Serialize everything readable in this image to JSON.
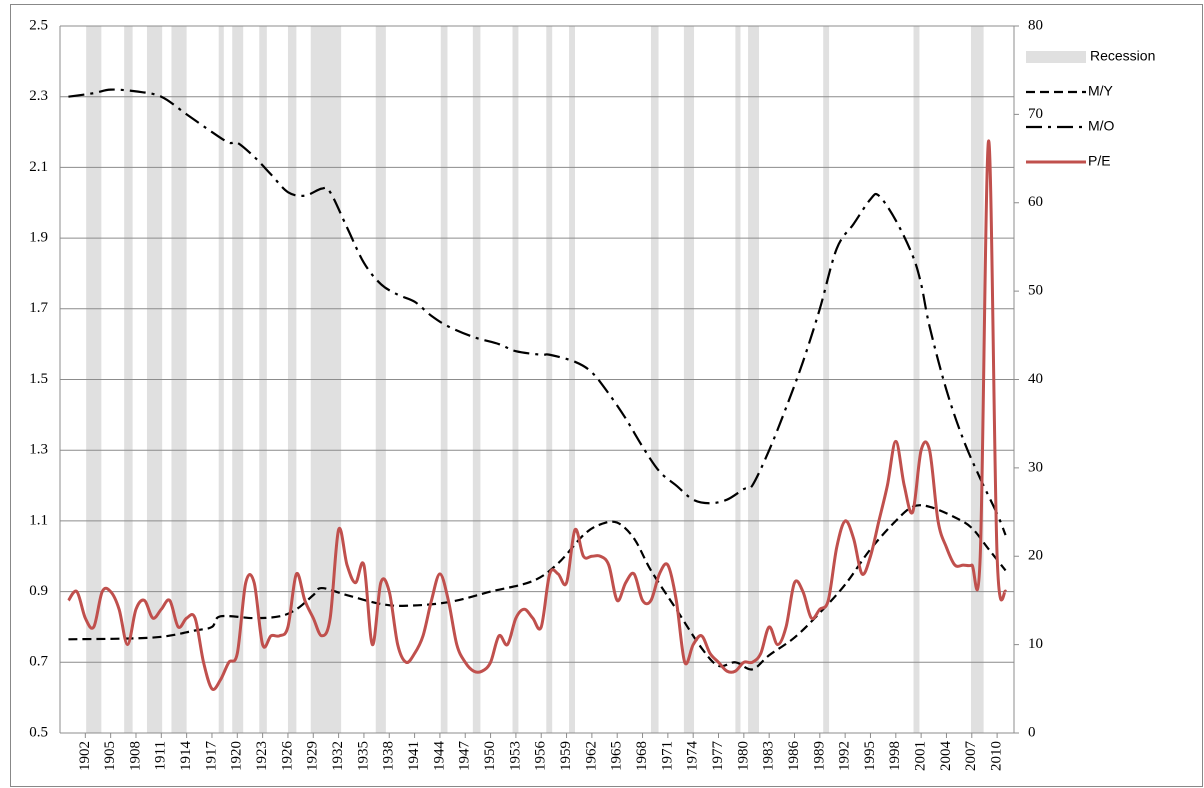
{
  "chart_data": {
    "type": "line",
    "xlim": [
      1899,
      2012
    ],
    "xticks": [
      1902,
      1905,
      1908,
      1911,
      1914,
      1917,
      1920,
      1923,
      1926,
      1929,
      1932,
      1935,
      1938,
      1941,
      1944,
      1947,
      1950,
      1953,
      1956,
      1959,
      1962,
      1965,
      1968,
      1971,
      1974,
      1977,
      1980,
      1983,
      1986,
      1989,
      1992,
      1995,
      1998,
      2001,
      2004,
      2007,
      2010
    ],
    "ylim": [
      0.5,
      2.5
    ],
    "yticks": [
      0.5,
      0.7,
      0.9,
      1.1,
      1.3,
      1.5,
      1.7,
      1.9,
      2.1,
      2.3,
      2.5
    ],
    "y2lim": [
      0,
      80
    ],
    "y2ticks": [
      0,
      10,
      20,
      30,
      40,
      50,
      60,
      70,
      80
    ],
    "grid": true,
    "legend": "right",
    "series": [
      {
        "name": "Recession",
        "color": "#e0e0e0",
        "periods": [
          [
            1902.1,
            1903.9
          ],
          [
            1906.6,
            1907.6
          ],
          [
            1909.3,
            1911.1
          ],
          [
            1912.2,
            1914.0
          ],
          [
            1917.8,
            1918.4
          ],
          [
            1919.4,
            1920.7
          ],
          [
            1922.6,
            1923.5
          ],
          [
            1926.0,
            1927.0
          ],
          [
            1928.7,
            1932.3
          ],
          [
            1936.4,
            1937.6
          ],
          [
            1944.1,
            1944.9
          ],
          [
            1947.9,
            1948.8
          ],
          [
            1952.6,
            1953.3
          ],
          [
            1956.6,
            1957.3
          ],
          [
            1959.3,
            1960.0
          ],
          [
            1969.0,
            1969.9
          ],
          [
            1972.9,
            1974.1
          ],
          [
            1979.0,
            1979.6
          ],
          [
            1980.5,
            1981.8
          ],
          [
            1989.4,
            1990.1
          ],
          [
            2000.1,
            2000.8
          ],
          [
            2006.9,
            2008.4
          ]
        ]
      },
      {
        "name": "M/Y",
        "color": "#000000",
        "dash": "dash",
        "x": [
          1900,
          1910,
          1915,
          1917,
          1918,
          1922,
          1925,
          1927,
          1929,
          1930,
          1933,
          1937,
          1940,
          1945,
          1950,
          1955,
          1958,
          1961,
          1963,
          1965,
          1967,
          1969,
          1972,
          1975,
          1977,
          1979,
          1981,
          1983,
          1986,
          1989,
          1992,
          1995,
          1998,
          2000,
          2002,
          2005,
          2007,
          2009,
          2011
        ],
        "values": [
          0.765,
          0.77,
          0.79,
          0.8,
          0.83,
          0.825,
          0.83,
          0.85,
          0.89,
          0.91,
          0.89,
          0.865,
          0.86,
          0.87,
          0.9,
          0.93,
          0.98,
          1.06,
          1.09,
          1.095,
          1.05,
          0.96,
          0.85,
          0.74,
          0.69,
          0.7,
          0.68,
          0.72,
          0.77,
          0.84,
          0.92,
          1.02,
          1.1,
          1.14,
          1.14,
          1.11,
          1.08,
          1.02,
          0.96
        ]
      },
      {
        "name": "M/O",
        "color": "#000000",
        "dash": "dash-dot",
        "x": [
          1900,
          1903,
          1905,
          1908,
          1911,
          1914,
          1917,
          1919,
          1920,
          1922,
          1924,
          1926,
          1928,
          1930,
          1931,
          1933,
          1935,
          1937,
          1939,
          1941,
          1943,
          1945,
          1948,
          1951,
          1953,
          1956,
          1957,
          1960,
          1962,
          1964,
          1966,
          1968,
          1970,
          1972,
          1974,
          1976,
          1978,
          1980,
          1981,
          1983,
          1985,
          1987,
          1989,
          1991,
          1993,
          1995,
          1996,
          1998,
          2000,
          2001,
          2002,
          2004,
          2006,
          2008,
          2010,
          2011
        ],
        "values": [
          2.3,
          2.31,
          2.32,
          2.315,
          2.3,
          2.25,
          2.2,
          2.17,
          2.17,
          2.13,
          2.08,
          2.03,
          2.02,
          2.04,
          2.03,
          1.93,
          1.83,
          1.77,
          1.74,
          1.72,
          1.68,
          1.65,
          1.62,
          1.6,
          1.58,
          1.57,
          1.57,
          1.55,
          1.52,
          1.46,
          1.39,
          1.31,
          1.24,
          1.2,
          1.16,
          1.15,
          1.16,
          1.19,
          1.2,
          1.3,
          1.42,
          1.55,
          1.7,
          1.87,
          1.94,
          2.01,
          2.02,
          1.95,
          1.85,
          1.77,
          1.65,
          1.47,
          1.33,
          1.22,
          1.12,
          1.06
        ]
      },
      {
        "name": "P/E",
        "color": "#c0504d",
        "dash": "solid",
        "axis": "y2",
        "x": [
          1900,
          1901,
          1902,
          1903,
          1904,
          1905,
          1906,
          1907,
          1908,
          1909,
          1910,
          1911,
          1912,
          1913,
          1914,
          1915,
          1916,
          1917,
          1918,
          1919,
          1920,
          1921,
          1922,
          1923,
          1924,
          1925,
          1926,
          1927,
          1928,
          1929,
          1930,
          1931,
          1932,
          1933,
          1934,
          1935,
          1936,
          1937,
          1938,
          1939,
          1940,
          1941,
          1942,
          1943,
          1944,
          1945,
          1946,
          1947,
          1948,
          1949,
          1950,
          1951,
          1952,
          1953,
          1954,
          1955,
          1956,
          1957,
          1958,
          1959,
          1960,
          1961,
          1962,
          1963,
          1964,
          1965,
          1966,
          1967,
          1968,
          1969,
          1970,
          1971,
          1972,
          1973,
          1974,
          1975,
          1976,
          1977,
          1978,
          1979,
          1980,
          1981,
          1982,
          1983,
          1984,
          1985,
          1986,
          1987,
          1988,
          1989,
          1990,
          1991,
          1992,
          1993,
          1994,
          1995,
          1996,
          1997,
          1998,
          1999,
          2000,
          2001,
          2002,
          2003,
          2004,
          2005,
          2006,
          2007,
          2008,
          2009,
          2010,
          2011
        ],
        "values": [
          15,
          16,
          13,
          12,
          16,
          16,
          14,
          10,
          14,
          15,
          13,
          14,
          15,
          12,
          13,
          13,
          8,
          5,
          6,
          8,
          9,
          17,
          17,
          10,
          11,
          11,
          12,
          18,
          15,
          13,
          11,
          13,
          23,
          19,
          17,
          19,
          10,
          17,
          16,
          10,
          8,
          9,
          11,
          15,
          18,
          15,
          10,
          8,
          7,
          7,
          8,
          11,
          10,
          13,
          14,
          13,
          12,
          18,
          18,
          17,
          23,
          20,
          20,
          20,
          19,
          15,
          17,
          18,
          15,
          15,
          18,
          19,
          15,
          8,
          10,
          11,
          9,
          8,
          7,
          7,
          8,
          8,
          9,
          12,
          10,
          12,
          17,
          16,
          13,
          14,
          15,
          21,
          24,
          22,
          18,
          20,
          24,
          28,
          33,
          28,
          25,
          32,
          32,
          24,
          21,
          19,
          19,
          19,
          20,
          67,
          20,
          16
        ]
      }
    ]
  }
}
